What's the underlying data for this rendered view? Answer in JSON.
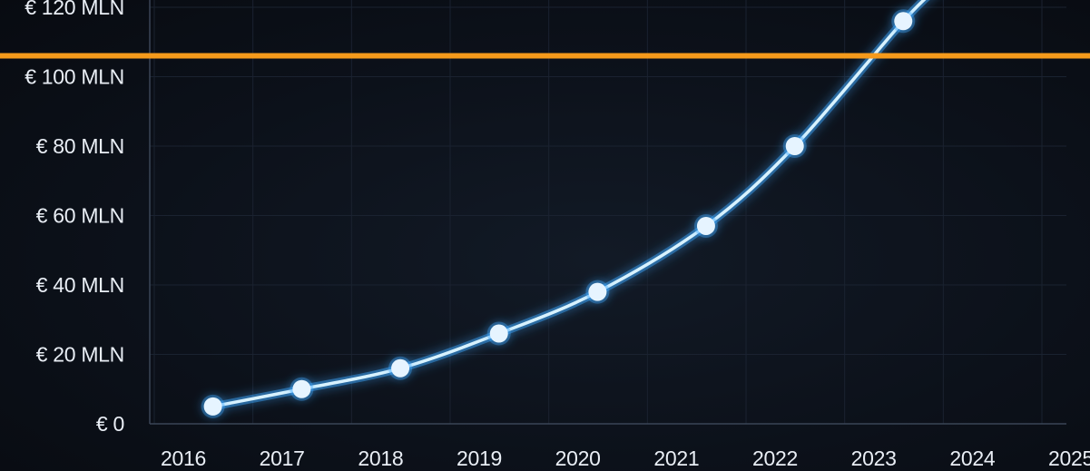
{
  "chart_data": {
    "type": "line",
    "title": "",
    "xlabel": "",
    "ylabel": "",
    "x": [
      "2016",
      "2017",
      "2018",
      "2019",
      "2020",
      "2021",
      "2022",
      "2023",
      "2024",
      "2025"
    ],
    "y_ticks": [
      {
        "value": 0,
        "label": "€ 0"
      },
      {
        "value": 20,
        "label": "€ 20 MLN"
      },
      {
        "value": 40,
        "label": "€ 40 MLN"
      },
      {
        "value": 60,
        "label": "€ 60 MLN"
      },
      {
        "value": 80,
        "label": "€ 80 MLN"
      },
      {
        "value": 100,
        "label": "€ 100 MLN"
      },
      {
        "value": 120,
        "label": "€ 120 MLN"
      }
    ],
    "ylim": [
      0,
      120
    ],
    "grid": true,
    "series": [
      {
        "points": [
          {
            "x": 2016.3,
            "y": 5
          },
          {
            "x": 2017.2,
            "y": 10
          },
          {
            "x": 2018.2,
            "y": 16
          },
          {
            "x": 2019.2,
            "y": 26
          },
          {
            "x": 2020.2,
            "y": 38
          },
          {
            "x": 2021.3,
            "y": 57
          },
          {
            "x": 2022.2,
            "y": 80
          },
          {
            "x": 2023.3,
            "y": 116
          }
        ]
      }
    ],
    "reference_lines": [
      {
        "y": 106,
        "color": "#f59a1b"
      }
    ],
    "colors": {
      "background": "#0b0f16",
      "line": "#d8f2ff",
      "glow": "#3fa9ff",
      "marker": "#e6f4ff",
      "grid": "#1a2230",
      "axis": "#3a4556",
      "text": "#e9eef5",
      "threshold": "#f59a1b"
    }
  }
}
